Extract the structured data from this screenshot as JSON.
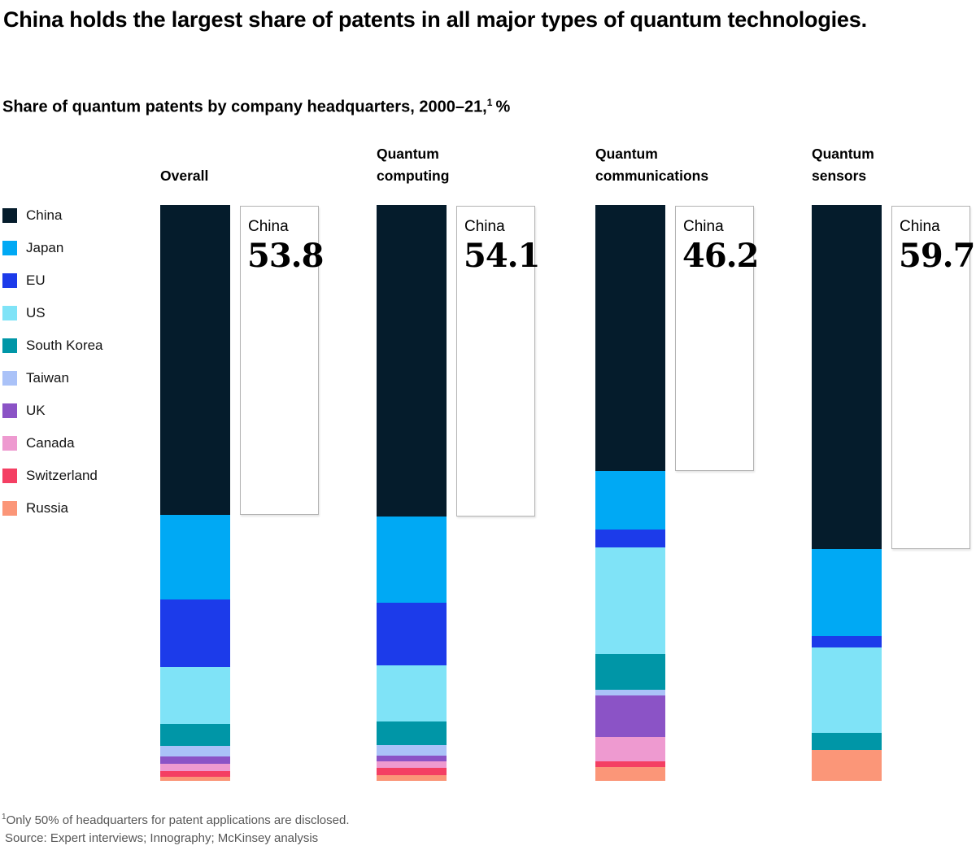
{
  "title": "China holds the largest share of patents in all major types of quantum technologies.",
  "subtitle": {
    "text": "Share of quantum patents by company headquarters, 2000–21,",
    "superscript": "1",
    "suffix": " %"
  },
  "chart_data": {
    "type": "bar",
    "stacked": true,
    "orientation": "vertical",
    "unit": "%",
    "legend_position": "left",
    "grid": false,
    "ylim": [
      0,
      100
    ],
    "categories": [
      "Overall",
      "Quantum computing",
      "Quantum communications",
      "Quantum sensors"
    ],
    "category_header_lines": [
      [
        "Overall"
      ],
      [
        "Quantum",
        "computing"
      ],
      [
        "Quantum",
        "communications"
      ],
      [
        "Quantum",
        "sensors"
      ]
    ],
    "series": [
      {
        "name": "China",
        "color": "#051c2c",
        "values": [
          53.8,
          54.1,
          46.2,
          59.7
        ]
      },
      {
        "name": "Japan",
        "color": "#00a9f4",
        "values": [
          14.7,
          14.9,
          10.2,
          15.1
        ]
      },
      {
        "name": "EU",
        "color": "#1c3bea",
        "values": [
          11.8,
          11.0,
          3.0,
          2.0
        ]
      },
      {
        "name": "US",
        "color": "#7fe3f7",
        "values": [
          9.8,
          9.7,
          18.6,
          14.8
        ]
      },
      {
        "name": "South Korea",
        "color": "#0096a7",
        "values": [
          3.9,
          4.1,
          6.2,
          3.0
        ]
      },
      {
        "name": "Taiwan",
        "color": "#aac2f8",
        "values": [
          1.8,
          1.8,
          1.0,
          0
        ]
      },
      {
        "name": "UK",
        "color": "#8b53c6",
        "values": [
          1.2,
          1.0,
          7.2,
          0
        ]
      },
      {
        "name": "Canada",
        "color": "#ee9ad0",
        "values": [
          1.3,
          1.1,
          4.2,
          0
        ]
      },
      {
        "name": "Switzerland",
        "color": "#f43f63",
        "values": [
          1.0,
          1.3,
          1.0,
          0
        ]
      },
      {
        "name": "Russia",
        "color": "#fb9678",
        "values": [
          0.7,
          1.0,
          2.4,
          5.4
        ]
      }
    ],
    "callouts": [
      {
        "label": "China",
        "value": "53.8"
      },
      {
        "label": "China",
        "value": "54.1"
      },
      {
        "label": "China",
        "value": "46.2"
      },
      {
        "label": "China",
        "value": "59.7"
      }
    ]
  },
  "footnote": {
    "superscript": "1",
    "text": "Only 50% of headquarters for patent applications are disclosed.",
    "source": "Source: Expert interviews; Innography; McKinsey analysis"
  }
}
